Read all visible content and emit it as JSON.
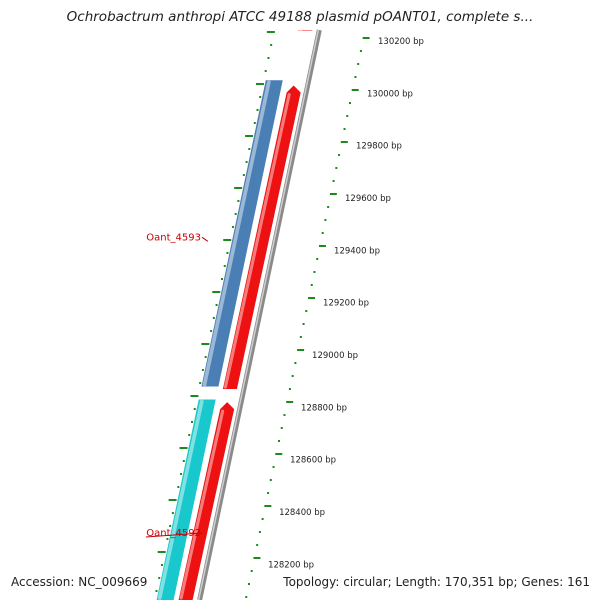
{
  "title": "Ochrobactrum anthropi ATCC 49188 plasmid pOANT01, complete s...",
  "footer": {
    "accession": "Accession: NC_009669",
    "summary": "Topology: circular; Length: 170,351 bp; Genes: 161"
  },
  "colors": {
    "gene_label": "#cc0000",
    "ticks": "#1e8a1e",
    "backbone": "#8a8a8a",
    "reverse_cds": "#ee1111",
    "feature_1": "#4a7fb5",
    "feature_2": "#18c8cc"
  },
  "chart_data": {
    "type": "map",
    "topology": "circular",
    "position_labels": [
      {
        "bp": 130200,
        "label": "130200 bp"
      },
      {
        "bp": 130000,
        "label": "130000 bp"
      },
      {
        "bp": 129800,
        "label": "129800 bp"
      },
      {
        "bp": 129600,
        "label": "129600 bp"
      },
      {
        "bp": 129400,
        "label": "129400 bp"
      },
      {
        "bp": 129200,
        "label": "129200 bp"
      },
      {
        "bp": 129000,
        "label": "129000 bp"
      },
      {
        "bp": 128800,
        "label": "128800 bp"
      },
      {
        "bp": 128600,
        "label": "128600 bp"
      },
      {
        "bp": 128400,
        "label": "128400 bp"
      },
      {
        "bp": 128200,
        "label": "128200 bp"
      }
    ],
    "gene_labels": [
      {
        "label": "Oant_4593",
        "bp": 129450
      },
      {
        "label": "Oant_4592",
        "bp": 128320
      }
    ],
    "features": [
      {
        "ring": "outer",
        "kind": "cds",
        "start": 128880,
        "end": 130050,
        "color": "#4a7fb5"
      },
      {
        "ring": "outer",
        "kind": "cds",
        "start": 127800,
        "end": 128830,
        "color": "#18c8cc"
      },
      {
        "ring": "inner",
        "kind": "cds",
        "start": 130240,
        "end": 130500,
        "color": "#ee1111"
      },
      {
        "ring": "inner",
        "kind": "cds",
        "start": 128870,
        "end": 130030,
        "color": "#ee1111"
      },
      {
        "ring": "inner",
        "kind": "cds",
        "start": 127800,
        "end": 128820,
        "color": "#ee1111"
      }
    ]
  }
}
